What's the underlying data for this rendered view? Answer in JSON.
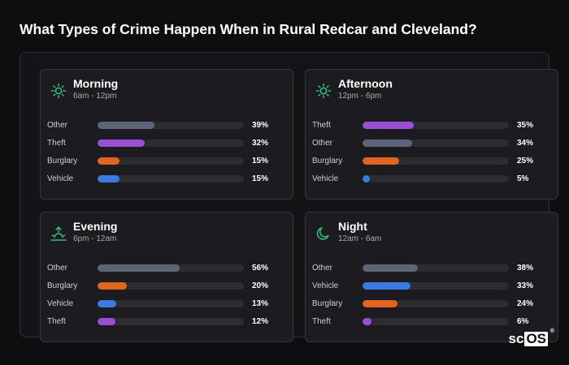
{
  "page": {
    "title": "What Types of Crime Happen When in Rural Redcar and Cleveland?"
  },
  "colors": {
    "accent": "#2ec27e",
    "Other": "#5f6578",
    "Theft": "#9b4fd6",
    "Burglary": "#e0651e",
    "Vehicle": "#3b7be0"
  },
  "cards": [
    {
      "title": "Morning",
      "subtitle": "6am - 12pm",
      "icon": "sun-icon",
      "rows": [
        {
          "label": "Other",
          "value": 39,
          "pct": "39%"
        },
        {
          "label": "Theft",
          "value": 32,
          "pct": "32%"
        },
        {
          "label": "Burglary",
          "value": 15,
          "pct": "15%"
        },
        {
          "label": "Vehicle",
          "value": 15,
          "pct": "15%"
        }
      ]
    },
    {
      "title": "Afternoon",
      "subtitle": "12pm - 6pm",
      "icon": "sun-icon",
      "rows": [
        {
          "label": "Theft",
          "value": 35,
          "pct": "35%"
        },
        {
          "label": "Other",
          "value": 34,
          "pct": "34%"
        },
        {
          "label": "Burglary",
          "value": 25,
          "pct": "25%"
        },
        {
          "label": "Vehicle",
          "value": 5,
          "pct": "5%"
        }
      ]
    },
    {
      "title": "Evening",
      "subtitle": "6pm - 12am",
      "icon": "sunset-icon",
      "rows": [
        {
          "label": "Other",
          "value": 56,
          "pct": "56%"
        },
        {
          "label": "Burglary",
          "value": 20,
          "pct": "20%"
        },
        {
          "label": "Vehicle",
          "value": 13,
          "pct": "13%"
        },
        {
          "label": "Theft",
          "value": 12,
          "pct": "12%"
        }
      ]
    },
    {
      "title": "Night",
      "subtitle": "12am - 6am",
      "icon": "moon-icon",
      "rows": [
        {
          "label": "Other",
          "value": 38,
          "pct": "38%"
        },
        {
          "label": "Vehicle",
          "value": 33,
          "pct": "33%"
        },
        {
          "label": "Burglary",
          "value": 24,
          "pct": "24%"
        },
        {
          "label": "Theft",
          "value": 6,
          "pct": "6%"
        }
      ]
    }
  ],
  "brand": {
    "prefix": "sc",
    "boxed": "OS",
    "mark": "®"
  }
}
